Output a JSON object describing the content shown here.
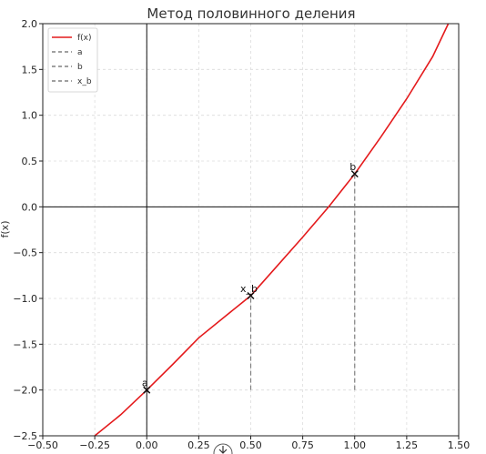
{
  "chart_data": {
    "type": "line",
    "title": "Метод половинного деления",
    "xlabel": "",
    "ylabel": "f(x)",
    "xlim": [
      -0.5,
      1.5
    ],
    "ylim": [
      -2.5,
      2.0
    ],
    "grid": true,
    "legend_position": "top-left",
    "xticks": [
      -0.5,
      -0.25,
      0.0,
      0.25,
      0.5,
      0.75,
      1.0,
      1.25,
      1.5
    ],
    "xtick_labels": [
      "−0.50",
      "−0.25",
      "0.00",
      "0.25",
      "0.50",
      "0.75",
      "1.00",
      "1.25",
      "1.50"
    ],
    "yticks": [
      -2.5,
      -2.0,
      -1.5,
      -1.0,
      -0.5,
      0.0,
      0.5,
      1.0,
      1.5,
      2.0
    ],
    "ytick_labels": [
      "−2.5",
      "−2.0",
      "−1.5",
      "−1.0",
      "−0.5",
      "0.0",
      "0.5",
      "1.0",
      "1.5",
      "2.0"
    ],
    "curve": {
      "color": "#e41a1c",
      "x": [
        -0.25,
        -0.125,
        0.0,
        0.125,
        0.25,
        0.375,
        0.5,
        0.625,
        0.75,
        0.875,
        1.0,
        1.125,
        1.25,
        1.375,
        1.45
      ],
      "y": [
        -2.5,
        -2.27,
        -2.0,
        -1.72,
        -1.43,
        -1.2,
        -0.97,
        -0.65,
        -0.33,
        0.0,
        0.36,
        0.76,
        1.18,
        1.64,
        2.0
      ]
    },
    "legend": [
      {
        "label": "f(x)",
        "style": "solid",
        "color": "#e41a1c"
      },
      {
        "label": "a",
        "style": "dashed",
        "color": "#808080"
      },
      {
        "label": "b",
        "style": "dashed",
        "color": "#808080"
      },
      {
        "label": "x_b",
        "style": "dashed",
        "color": "#808080"
      }
    ],
    "points": [
      {
        "label": "a",
        "x": 0.0,
        "y": -2.0
      },
      {
        "label": "x_b",
        "x": 0.5,
        "y": -0.97
      },
      {
        "label": "b",
        "x": 1.0,
        "y": 0.36
      }
    ],
    "vlines": [
      {
        "x": 0.5,
        "y_from": -2.0,
        "y_to": -0.97,
        "color": "#808080"
      },
      {
        "x": 1.0,
        "y_from": -2.0,
        "y_to": 0.36,
        "color": "#808080"
      }
    ],
    "axis_lines": {
      "x0": 0.0,
      "y0": 0.0
    }
  }
}
